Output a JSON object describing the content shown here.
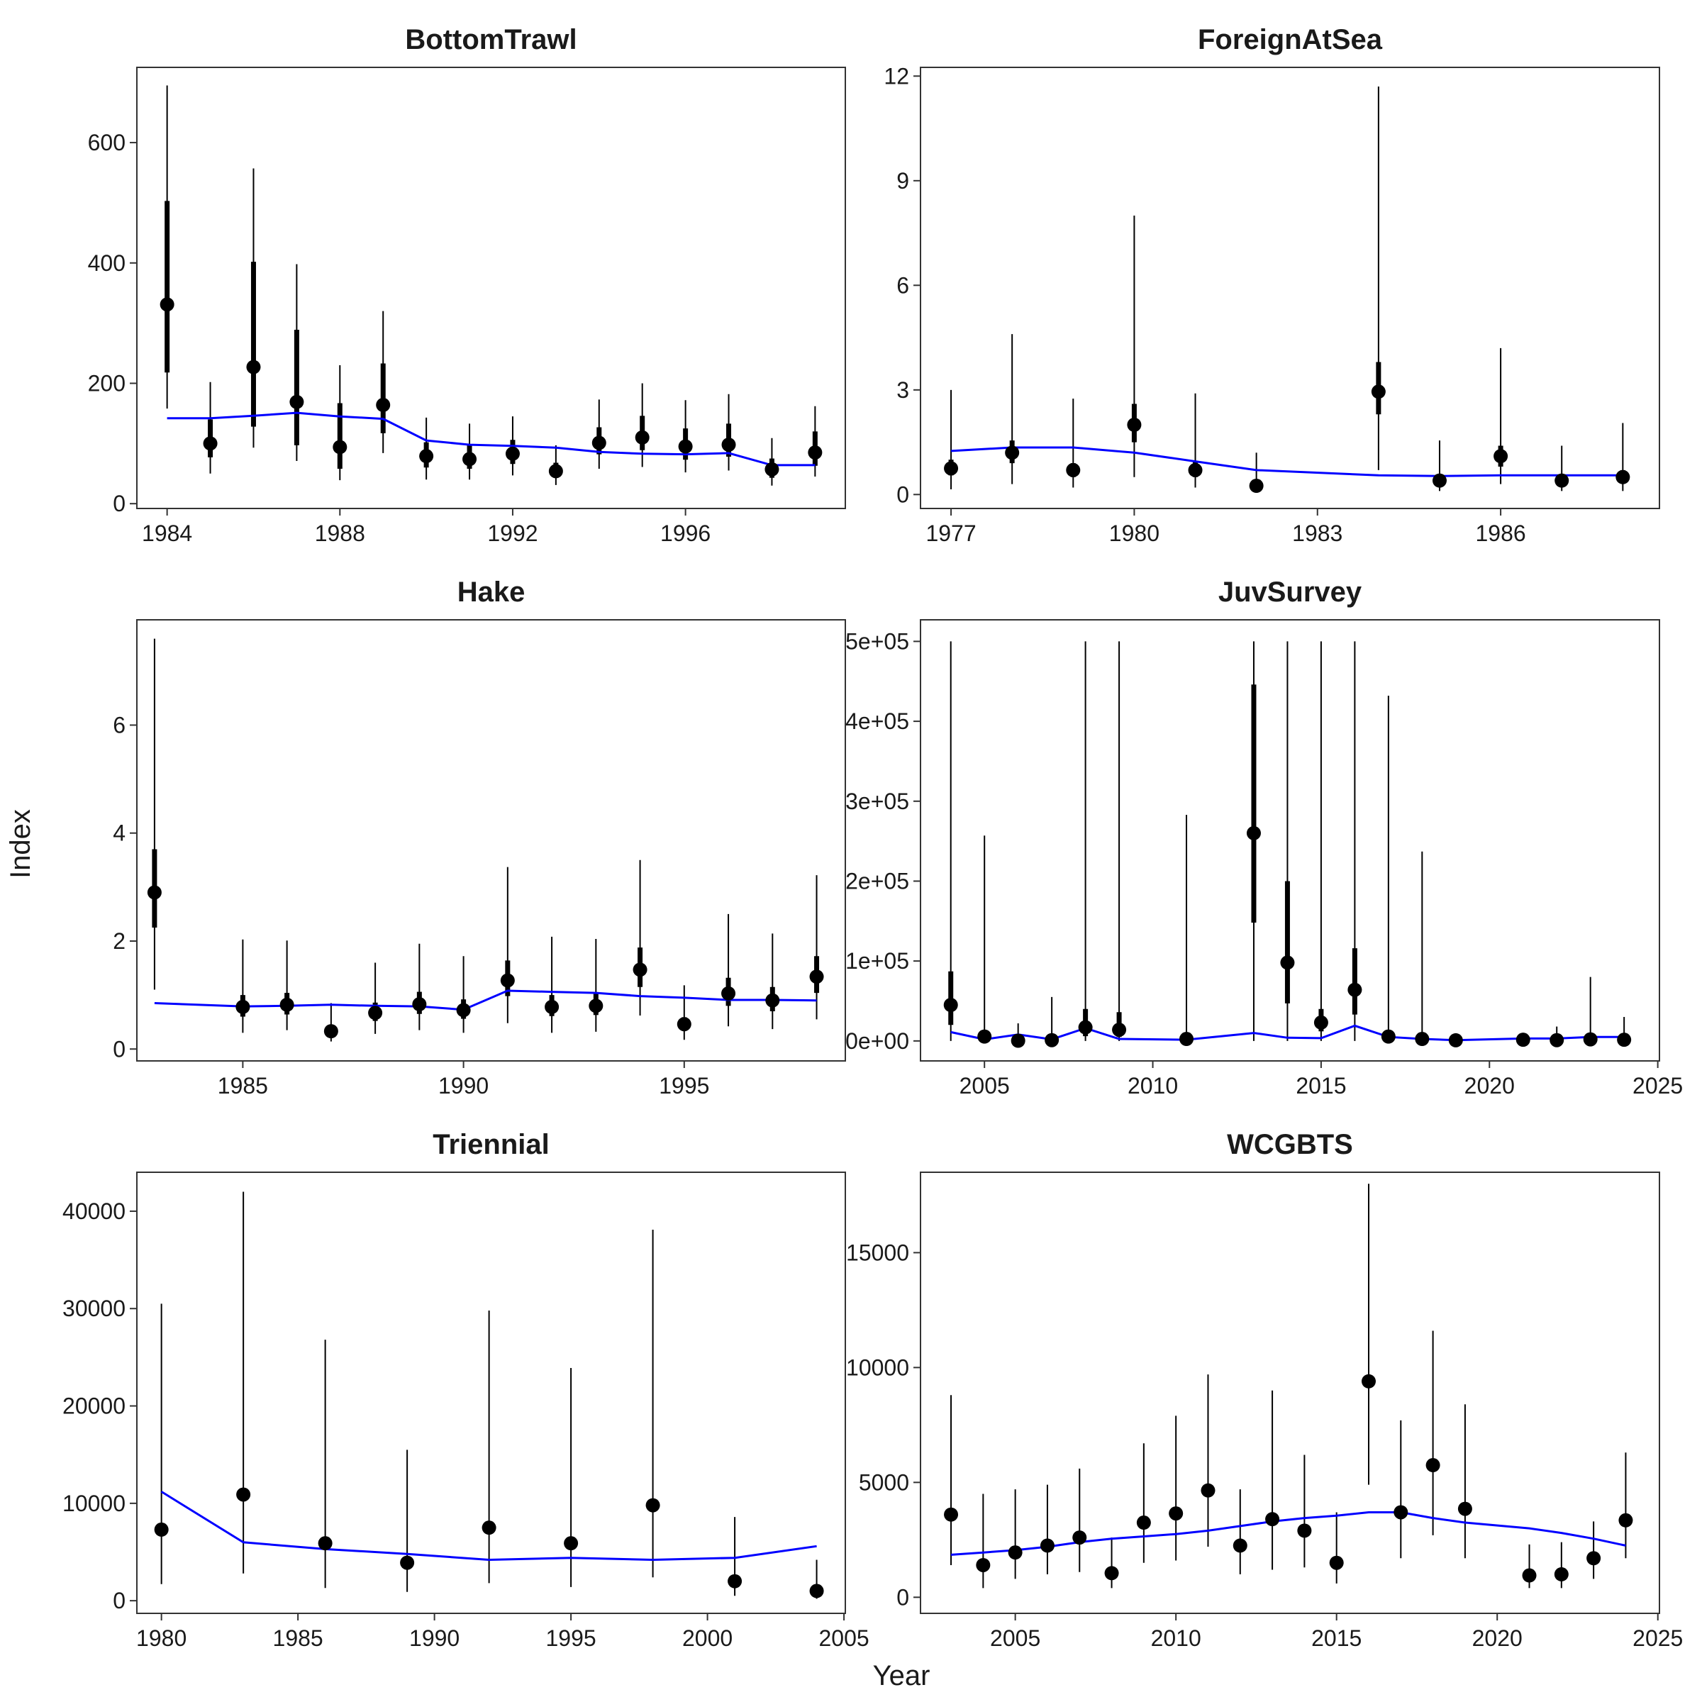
{
  "figure": {
    "xlabel": "Year",
    "ylabel": "Index"
  },
  "style": {
    "point_color": "#000000",
    "fit_line_color": "#0000ff",
    "panel_border": "#333333"
  },
  "chart_data": [
    {
      "type": "scatter",
      "title": "BottomTrawl",
      "xticks": [
        1984,
        1988,
        1992,
        1996
      ],
      "yticks": [
        0,
        200,
        400,
        600
      ],
      "ytick_labels": [
        "0",
        "200",
        "400",
        "600"
      ],
      "xlim": [
        1983.3,
        1999.7
      ],
      "ylim": [
        -8,
        725
      ],
      "x": [
        1984,
        1985,
        1986,
        1987,
        1988,
        1989,
        1990,
        1991,
        1992,
        1993,
        1994,
        1995,
        1996,
        1997,
        1998,
        1999
      ],
      "obs": [
        331,
        100,
        227,
        169,
        94,
        164,
        79,
        74,
        83,
        54,
        101,
        110,
        95,
        98,
        57,
        85
      ],
      "lo_thin": [
        158,
        50,
        93,
        71,
        39,
        84,
        40,
        40,
        47,
        31,
        58,
        61,
        52,
        55,
        30,
        45
      ],
      "hi_thin": [
        695,
        202,
        557,
        398,
        230,
        320,
        143,
        133,
        145,
        97,
        173,
        200,
        172,
        182,
        109,
        162
      ],
      "lo_thick": [
        218,
        77,
        128,
        97,
        58,
        117,
        60,
        58,
        66,
        43,
        82,
        89,
        73,
        78,
        43,
        63
      ],
      "hi_thick": [
        503,
        140,
        402,
        289,
        167,
        233,
        102,
        97,
        106,
        68,
        127,
        146,
        125,
        133,
        75,
        120
      ],
      "fit": [
        142,
        142,
        146,
        151,
        145,
        141,
        105,
        98,
        96,
        93,
        86,
        83,
        82,
        84,
        64,
        64
      ]
    },
    {
      "type": "scatter",
      "title": "ForeignAtSea",
      "xticks": [
        1977,
        1980,
        1983,
        1986
      ],
      "yticks": [
        0,
        3,
        6,
        9,
        12
      ],
      "ytick_labels": [
        "0",
        "3",
        "6",
        "9",
        "12"
      ],
      "xlim": [
        1976.5,
        1988.6
      ],
      "ylim": [
        -0.4,
        12.25
      ],
      "x": [
        1977,
        1978,
        1979,
        1980,
        1981,
        1982,
        1984,
        1985,
        1986,
        1987,
        1988
      ],
      "obs": [
        0.75,
        1.2,
        0.7,
        2.0,
        0.7,
        0.25,
        2.95,
        0.4,
        1.1,
        0.4,
        0.5
      ],
      "lo_thin": [
        0.15,
        0.3,
        0.2,
        0.5,
        0.2,
        0.05,
        0.7,
        0.1,
        0.3,
        0.1,
        0.1
      ],
      "hi_thin": [
        3.0,
        4.6,
        2.75,
        8.0,
        2.9,
        1.2,
        11.7,
        1.55,
        4.2,
        1.4,
        2.05
      ],
      "lo_thick": [
        0.55,
        0.9,
        0.5,
        1.5,
        0.5,
        0.15,
        2.3,
        0.3,
        0.8,
        0.3,
        0.35
      ],
      "hi_thick": [
        1.0,
        1.55,
        0.9,
        2.6,
        0.95,
        0.35,
        3.8,
        0.55,
        1.4,
        0.55,
        0.7
      ],
      "fit": [
        1.25,
        1.35,
        1.35,
        1.2,
        0.95,
        0.7,
        0.55,
        0.53,
        0.55,
        0.55,
        0.55
      ]
    },
    {
      "type": "scatter",
      "title": "Hake",
      "xticks": [
        1985,
        1990,
        1995
      ],
      "yticks": [
        0,
        2,
        4,
        6
      ],
      "ytick_labels": [
        "0",
        "2",
        "4",
        "6"
      ],
      "xlim": [
        1982.6,
        1998.65
      ],
      "ylim": [
        -0.22,
        7.95
      ],
      "x": [
        1983,
        1985,
        1986,
        1987,
        1988,
        1989,
        1990,
        1991,
        1992,
        1993,
        1994,
        1995,
        1996,
        1997,
        1998
      ],
      "obs": [
        2.9,
        0.78,
        0.82,
        0.33,
        0.67,
        0.83,
        0.72,
        1.27,
        0.78,
        0.8,
        1.47,
        0.46,
        1.03,
        0.9,
        1.34
      ],
      "lo_thin": [
        1.1,
        0.3,
        0.35,
        0.14,
        0.28,
        0.35,
        0.3,
        0.48,
        0.3,
        0.32,
        0.62,
        0.17,
        0.42,
        0.37,
        0.55
      ],
      "hi_thin": [
        7.6,
        2.03,
        2.01,
        0.85,
        1.6,
        1.95,
        1.72,
        3.37,
        2.08,
        2.04,
        3.5,
        1.18,
        2.5,
        2.14,
        3.22
      ],
      "lo_thick": [
        2.25,
        0.6,
        0.64,
        0.26,
        0.52,
        0.65,
        0.56,
        0.98,
        0.61,
        0.63,
        1.15,
        0.36,
        0.8,
        0.7,
        1.04
      ],
      "hi_thick": [
        3.7,
        1.0,
        1.04,
        0.42,
        0.86,
        1.06,
        0.92,
        1.64,
        1.0,
        1.03,
        1.88,
        0.59,
        1.32,
        1.15,
        1.72
      ],
      "fit": [
        0.85,
        0.79,
        0.8,
        0.82,
        0.8,
        0.79,
        0.73,
        1.08,
        1.06,
        1.04,
        0.98,
        0.95,
        0.91,
        0.91,
        0.9
      ]
    },
    {
      "type": "scatter",
      "title": "JuvSurvey",
      "xticks": [
        2005,
        2010,
        2015,
        2020,
        2025
      ],
      "yticks": [
        0,
        100000,
        200000,
        300000,
        400000,
        500000
      ],
      "ytick_labels": [
        "0e+00",
        "1e+05",
        "2e+05",
        "3e+05",
        "4e+05",
        "5e+05"
      ],
      "xlim": [
        2003.1,
        2025.05
      ],
      "ylim": [
        -25000,
        527000
      ],
      "x": [
        2004,
        2005,
        2006,
        2007,
        2008,
        2009,
        2011,
        2013,
        2014,
        2015,
        2016,
        2017,
        2018,
        2019,
        2021,
        2022,
        2023,
        2024
      ],
      "obs": [
        45000,
        5500,
        300,
        1000,
        17000,
        14000,
        2500,
        260000,
        98000,
        23000,
        64000,
        5500,
        2500,
        800,
        1500,
        1000,
        2000,
        1500
      ],
      "lo_thin": [
        0,
        0,
        0,
        0,
        0,
        0,
        0,
        0,
        0,
        0,
        0,
        0,
        0,
        0,
        0,
        0,
        0,
        0
      ],
      "hi_thin": [
        500000,
        257000,
        22000,
        55000,
        500000,
        500000,
        283000,
        500000,
        500000,
        500000,
        500000,
        432000,
        237000,
        0,
        0,
        18000,
        80000,
        30000
      ],
      "lo_thick": [
        20000,
        2500,
        0,
        0,
        6000,
        5000,
        1000,
        148000,
        47000,
        12000,
        33000,
        2000,
        0,
        0,
        0,
        0,
        0,
        0
      ],
      "hi_thick": [
        87000,
        11000,
        1000,
        4000,
        40000,
        36000,
        5000,
        446000,
        200000,
        40000,
        116000,
        14000,
        6000,
        2000,
        4000,
        3000,
        6000,
        4000
      ],
      "fit": [
        11000,
        2000,
        8000,
        2000,
        16000,
        2500,
        1500,
        10000,
        4000,
        3500,
        19000,
        5000,
        2500,
        1000,
        3000,
        3000,
        5000,
        5000
      ]
    },
    {
      "type": "scatter",
      "title": "Triennial",
      "xticks": [
        1980,
        1985,
        1990,
        1995,
        2000,
        2005
      ],
      "yticks": [
        0,
        10000,
        20000,
        30000,
        40000
      ],
      "ytick_labels": [
        "0",
        "10000",
        "20000",
        "30000",
        "40000"
      ],
      "xlim": [
        1979.1,
        2005.05
      ],
      "ylim": [
        -1300,
        44000
      ],
      "x": [
        1980,
        1983,
        1986,
        1989,
        1992,
        1995,
        1998,
        2001,
        2004
      ],
      "obs": [
        7300,
        10900,
        5900,
        3900,
        7500,
        5900,
        9800,
        2000,
        1000
      ],
      "lo_thin": [
        1700,
        2800,
        1300,
        900,
        1800,
        1400,
        2400,
        500,
        200
      ],
      "hi_thin": [
        30500,
        42000,
        26800,
        15500,
        29800,
        23900,
        38100,
        8600,
        4200
      ],
      "lo_thick": [
        7300,
        10900,
        5900,
        3900,
        7500,
        5900,
        9800,
        2000,
        1000
      ],
      "hi_thick": [
        7300,
        10900,
        5900,
        3900,
        7500,
        5900,
        9800,
        2000,
        1000
      ],
      "fit": [
        11200,
        6000,
        5300,
        4800,
        4200,
        4400,
        4200,
        4400,
        5600
      ]
    },
    {
      "type": "scatter",
      "title": "WCGBTS",
      "xticks": [
        2005,
        2010,
        2015,
        2020,
        2025
      ],
      "yticks": [
        0,
        5000,
        10000,
        15000
      ],
      "ytick_labels": [
        "0",
        "5000",
        "10000",
        "15000"
      ],
      "xlim": [
        2002.05,
        2025.05
      ],
      "ylim": [
        -700,
        18500
      ],
      "x": [
        2003,
        2004,
        2005,
        2006,
        2007,
        2008,
        2009,
        2010,
        2011,
        2012,
        2013,
        2014,
        2015,
        2016,
        2017,
        2018,
        2019,
        2021,
        2022,
        2023,
        2024
      ],
      "obs": [
        3600,
        1400,
        1950,
        2250,
        2600,
        1050,
        3250,
        3650,
        4650,
        2250,
        3400,
        2900,
        1500,
        9400,
        3700,
        5750,
        3850,
        950,
        1000,
        1700,
        3350
      ],
      "lo_thin": [
        1400,
        400,
        800,
        1000,
        1100,
        400,
        1500,
        1600,
        2200,
        1000,
        1200,
        1300,
        600,
        4900,
        1700,
        2700,
        1700,
        400,
        400,
        800,
        1700
      ],
      "hi_thin": [
        8800,
        4500,
        4700,
        4900,
        5600,
        2600,
        6700,
        7900,
        9700,
        4700,
        9000,
        6200,
        3700,
        18000,
        7700,
        11600,
        8400,
        2300,
        2400,
        3300,
        6300
      ],
      "lo_thick": [
        3600,
        1400,
        1950,
        2250,
        2600,
        1050,
        3250,
        3650,
        4650,
        2250,
        3400,
        2900,
        1500,
        9400,
        3700,
        5750,
        3850,
        950,
        1000,
        1700,
        3350
      ],
      "hi_thick": [
        3600,
        1400,
        1950,
        2250,
        2600,
        1050,
        3250,
        3650,
        4650,
        2250,
        3400,
        2900,
        1500,
        9400,
        3700,
        5750,
        3850,
        950,
        1000,
        1700,
        3350
      ],
      "fit": [
        1850,
        1950,
        2050,
        2200,
        2400,
        2550,
        2650,
        2750,
        2900,
        3100,
        3300,
        3450,
        3550,
        3700,
        3700,
        3450,
        3250,
        3000,
        2800,
        2550,
        2250
      ]
    }
  ]
}
